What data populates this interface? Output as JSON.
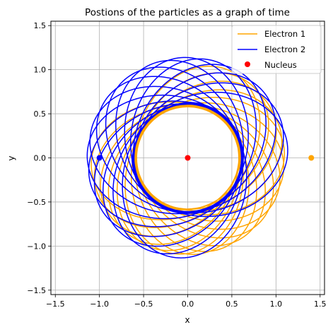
{
  "chart_data": {
    "type": "line",
    "title": "Postions of the particles as a graph of time",
    "xlabel": "x",
    "ylabel": "y",
    "xlim": [
      -1.55,
      1.55
    ],
    "ylim": [
      -1.55,
      1.55
    ],
    "xticks": [
      -1.5,
      -1.0,
      -0.5,
      0.0,
      0.5,
      1.0,
      1.5
    ],
    "yticks": [
      -1.5,
      -1.0,
      -0.5,
      0.0,
      0.5,
      1.0,
      1.5
    ],
    "xtick_labels": [
      "−1.5",
      "−1.0",
      "−0.5",
      "0.0",
      "0.5",
      "1.0",
      "1.5"
    ],
    "ytick_labels": [
      "−1.5",
      "−1.0",
      "−0.5",
      "0.0",
      "0.5",
      "1.0",
      "1.5"
    ],
    "grid": true,
    "legend_position": "top-right",
    "series": [
      {
        "name": "Electron 1",
        "color": "#FFA500",
        "kind": "precessing-orbit",
        "r_max": 1.4,
        "r_min": 0.3,
        "start_point": [
          1.4,
          0.0
        ]
      },
      {
        "name": "Electron 2",
        "color": "#0000FF",
        "kind": "precessing-orbit",
        "r_max": 1.45,
        "r_min": 0.32,
        "start_point": [
          -1.0,
          0.0
        ]
      },
      {
        "name": "Nucleus",
        "color": "#FF0000",
        "kind": "point",
        "x": [
          0.0
        ],
        "y": [
          0.0
        ]
      }
    ],
    "markers": [
      {
        "x": 1.4,
        "y": 0.0,
        "color": "#FFA500"
      },
      {
        "x": -1.0,
        "y": 0.0,
        "color": "#0000FF"
      }
    ]
  }
}
